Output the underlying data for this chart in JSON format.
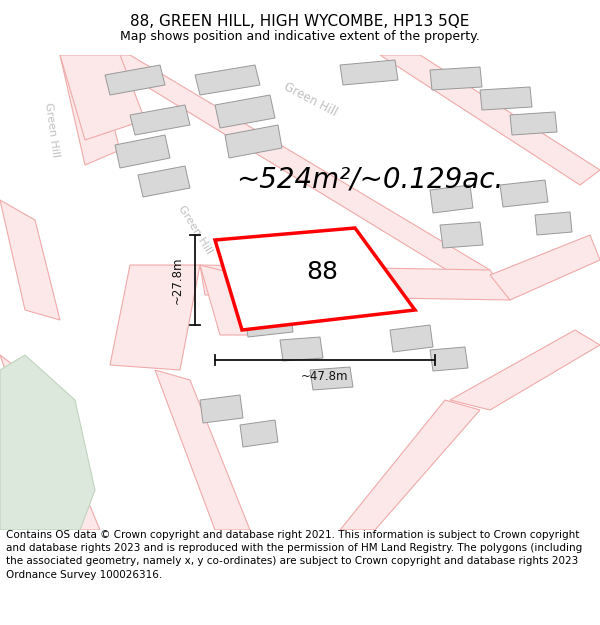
{
  "title": "88, GREEN HILL, HIGH WYCOMBE, HP13 5QE",
  "subtitle": "Map shows position and indicative extent of the property.",
  "area_text": "~524m²/~0.129ac.",
  "dim_width": "~47.8m",
  "dim_height": "~27.8m",
  "label_88": "88",
  "footer": "Contains OS data © Crown copyright and database right 2021. This information is subject to Crown copyright and database rights 2023 and is reproduced with the permission of HM Land Registry. The polygons (including the associated geometry, namely x, y co-ordinates) are subject to Crown copyright and database rights 2023 Ordnance Survey 100026316.",
  "background_color": "#ffffff",
  "road_fill": "#fce8e8",
  "road_edge": "#f0aaaa",
  "building_fill": "#d8d8d8",
  "building_edge": "#999999",
  "plot_fill": "#ffffff",
  "plot_edge": "#ff0000",
  "green_fill": "#dde8dc",
  "green_edge": "#c0d4be",
  "road_label_color": "#c0c0c0",
  "dim_color": "#111111",
  "title_fontsize": 11,
  "subtitle_fontsize": 9,
  "area_fontsize": 20,
  "label_fontsize": 18,
  "footer_fontsize": 7.5
}
